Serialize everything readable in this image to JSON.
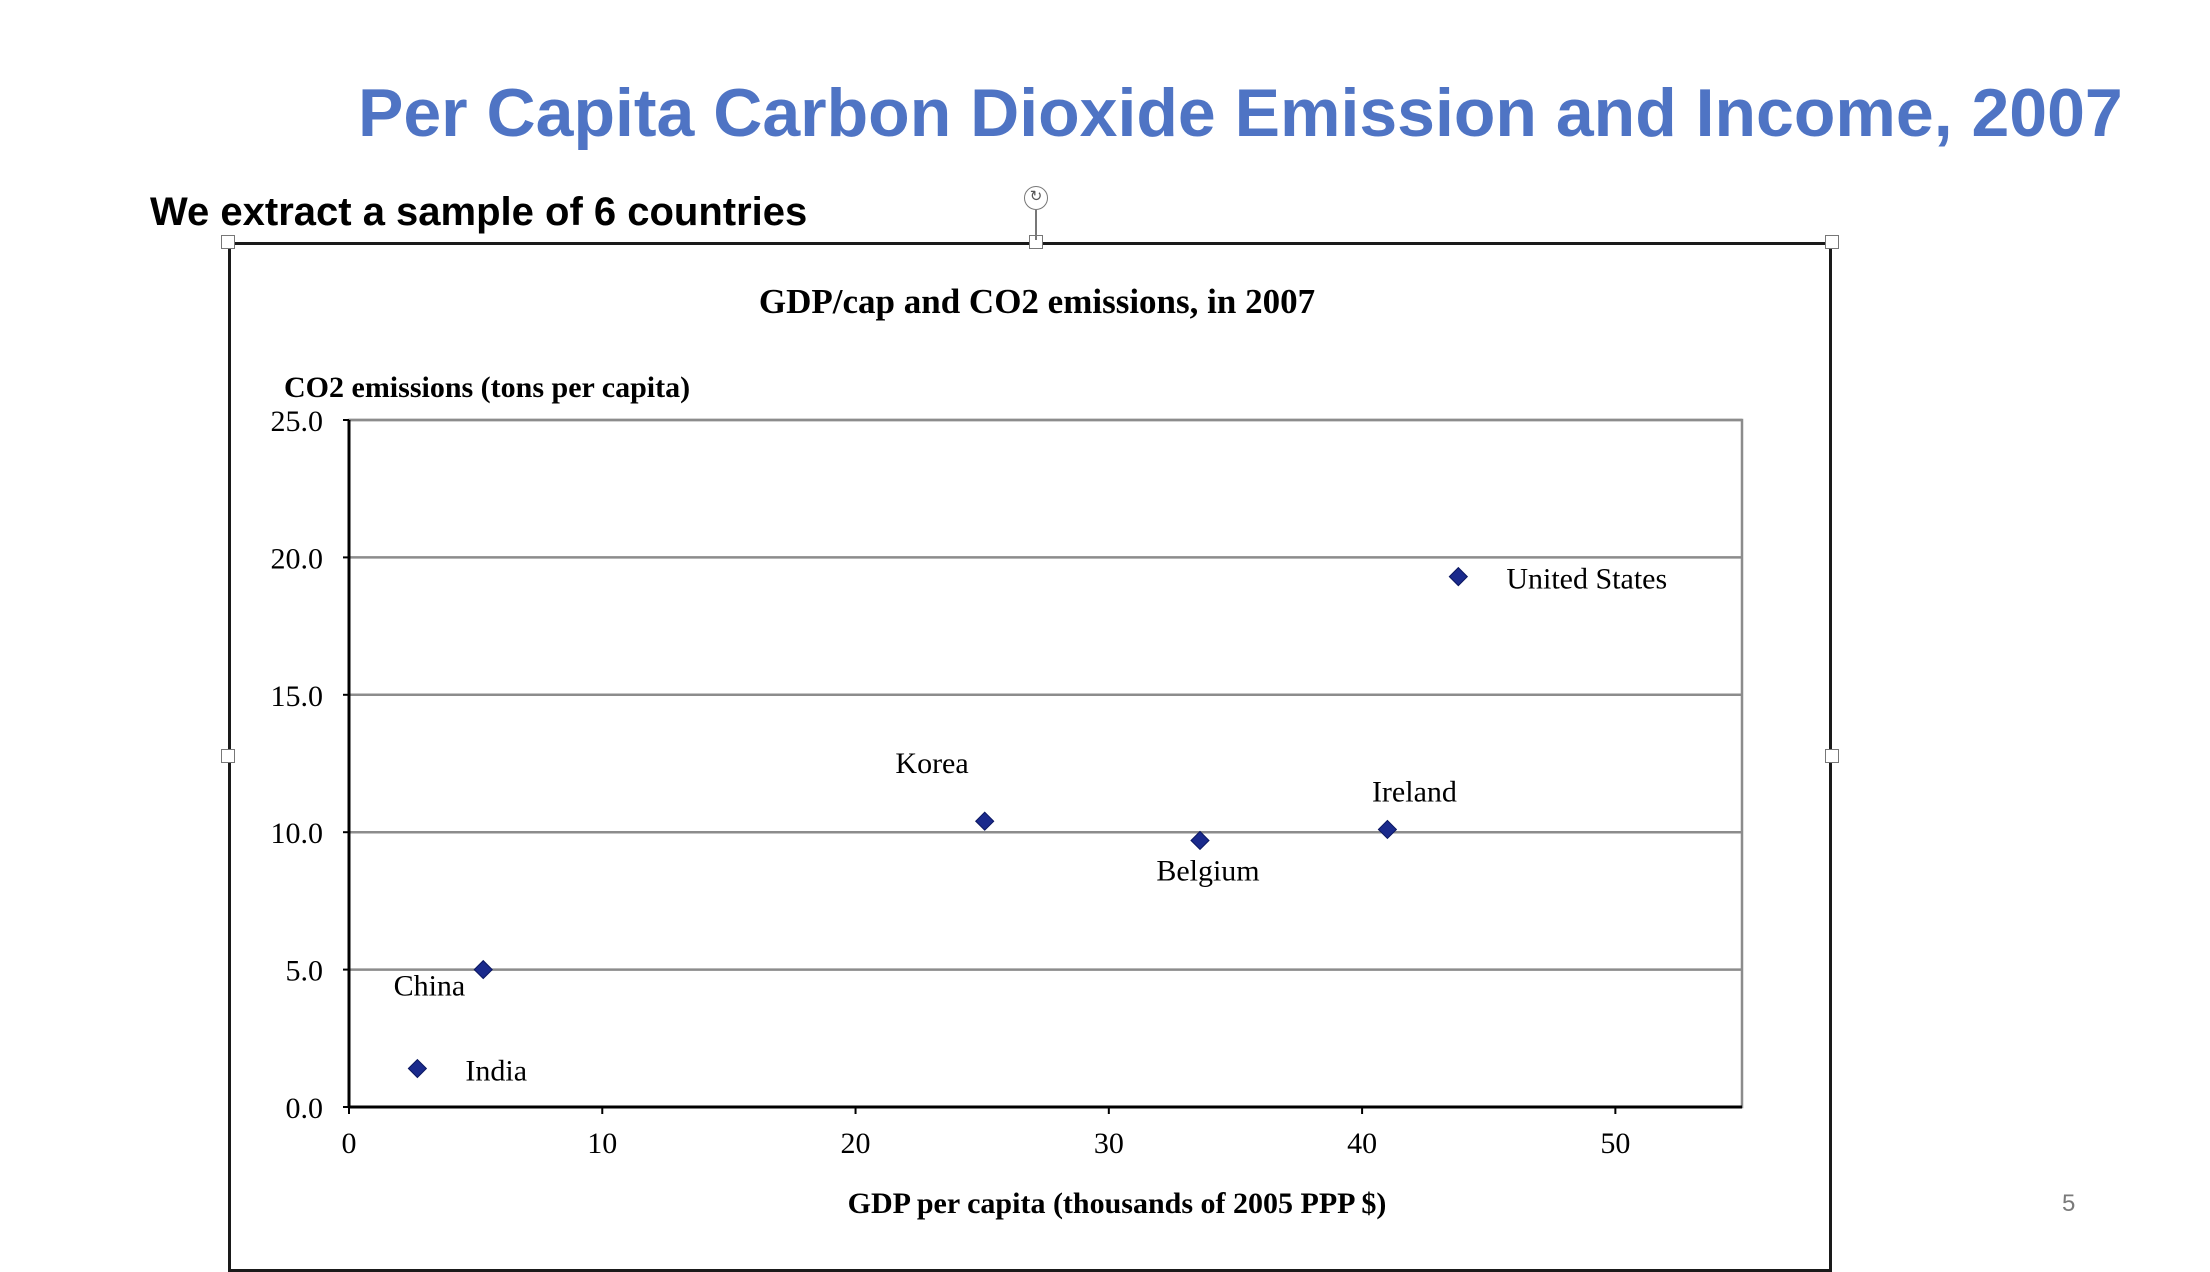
{
  "slide": {
    "title": "Per Capita Carbon Dioxide Emission and Income, 2007",
    "subtitle": "We extract a sample of 6 countries",
    "page_number": "5"
  },
  "colors": {
    "title": "#4f74c4",
    "marker": "#1a2a8c",
    "gridline": "#8c8c8c"
  },
  "chart_data": {
    "type": "scatter",
    "title": "GDP/cap and CO2 emissions, in 2007",
    "xlabel": "GDP per capita (thousands of 2005 PPP $)",
    "ylabel": "CO2 emissions (tons per capita)",
    "xlim": [
      0,
      55
    ],
    "ylim": [
      0,
      25
    ],
    "x_ticks": [
      0,
      10,
      20,
      30,
      40,
      50
    ],
    "y_ticks": [
      "0.0",
      "5.0",
      "10.0",
      "15.0",
      "20.0",
      "25.0"
    ],
    "y_tick_values": [
      0,
      5,
      10,
      15,
      20,
      25
    ],
    "grid": "horizontal",
    "legend": "none",
    "points": [
      {
        "label": "India",
        "x": 2.7,
        "y": 1.4,
        "label_pos": "right"
      },
      {
        "label": "China",
        "x": 5.3,
        "y": 5.0,
        "label_pos": "below-left"
      },
      {
        "label": "Korea",
        "x": 25.1,
        "y": 10.4,
        "label_pos": "above-left"
      },
      {
        "label": "Belgium",
        "x": 33.6,
        "y": 9.7,
        "label_pos": "below"
      },
      {
        "label": "Ireland",
        "x": 41.0,
        "y": 10.1,
        "label_pos": "above"
      },
      {
        "label": "United States",
        "x": 43.8,
        "y": 19.3,
        "label_pos": "right"
      }
    ]
  }
}
